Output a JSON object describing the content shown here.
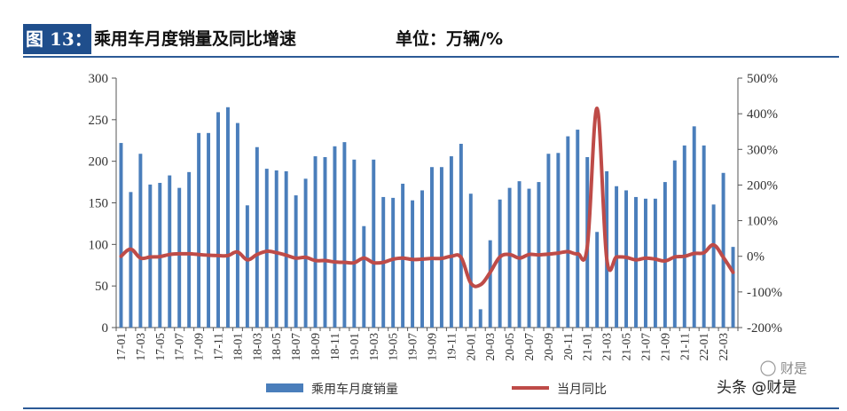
{
  "header": {
    "figure_label": "图 13：",
    "title": "乘用车月度销量及同比增速",
    "unit": "单位：万辆/%"
  },
  "watermark": {
    "top": "财是",
    "bottom": "头条 @财是"
  },
  "colors": {
    "bar": "#4a7ebb",
    "line": "#be4b48",
    "header_bg": "#1f4e8c",
    "rule": "#2c5a96"
  },
  "chart_data": {
    "type": "bar",
    "title": "乘用车月度销量及同比增速",
    "categories": [
      "17-01",
      "17-02",
      "17-03",
      "17-04",
      "17-05",
      "17-06",
      "17-07",
      "17-08",
      "17-09",
      "17-10",
      "17-11",
      "17-12",
      "18-01",
      "18-02",
      "18-03",
      "18-04",
      "18-05",
      "18-06",
      "18-07",
      "18-08",
      "18-09",
      "18-10",
      "18-11",
      "18-12",
      "19-01",
      "19-02",
      "19-03",
      "19-04",
      "19-05",
      "19-06",
      "19-07",
      "19-08",
      "19-09",
      "19-10",
      "19-11",
      "19-12",
      "20-01",
      "20-02",
      "20-03",
      "20-04",
      "20-05",
      "20-06",
      "20-07",
      "20-08",
      "20-09",
      "20-10",
      "20-11",
      "20-12",
      "21-01",
      "21-02",
      "21-03",
      "21-04",
      "21-05",
      "21-06",
      "21-07",
      "21-08",
      "21-09",
      "21-10",
      "21-11",
      "21-12",
      "22-01",
      "22-02",
      "22-03",
      "22-04"
    ],
    "x_tick_labels": [
      "17-01",
      "17-03",
      "17-05",
      "17-07",
      "17-09",
      "17-11",
      "18-01",
      "18-03",
      "18-05",
      "18-07",
      "18-09",
      "18-11",
      "19-01",
      "19-03",
      "19-05",
      "19-07",
      "19-09",
      "19-11",
      "20-01",
      "20-03",
      "20-05",
      "20-07",
      "20-09",
      "20-11",
      "21-01",
      "21-03",
      "21-05",
      "21-07",
      "21-09",
      "21-11",
      "22-01",
      "22-03"
    ],
    "series": [
      {
        "name": "乘用车月度销量",
        "type": "bar",
        "axis": "left",
        "values": [
          222,
          163,
          209,
          172,
          174,
          183,
          168,
          187,
          234,
          234,
          259,
          265,
          246,
          147,
          217,
          191,
          189,
          188,
          159,
          179,
          206,
          205,
          218,
          223,
          202,
          122,
          202,
          157,
          156,
          173,
          153,
          165,
          193,
          193,
          206,
          221,
          161,
          22,
          105,
          154,
          168,
          176,
          167,
          175,
          209,
          210,
          230,
          238,
          205,
          115,
          188,
          170,
          165,
          157,
          155,
          155,
          175,
          201,
          219,
          242,
          219,
          148,
          186,
          97
        ]
      },
      {
        "name": "当月同比",
        "type": "line",
        "axis": "right",
        "values": [
          0,
          20,
          -5,
          -2,
          -1,
          5,
          7,
          7,
          5,
          3,
          2,
          2,
          12,
          -10,
          5,
          14,
          10,
          3,
          -5,
          -3,
          -12,
          -12,
          -16,
          -17,
          -18,
          -5,
          -18,
          -17,
          -8,
          -5,
          -9,
          -8,
          -6,
          -6,
          0,
          -3,
          -75,
          -80,
          -45,
          -2,
          5,
          -5,
          5,
          4,
          6,
          9,
          13,
          7,
          28,
          415,
          -7,
          -2,
          -3,
          -10,
          -5,
          -8,
          -13,
          -2,
          0,
          8,
          10,
          32,
          -3,
          -45
        ]
      }
    ],
    "y_left": {
      "min": 0,
      "max": 300,
      "ticks": [
        0,
        50,
        100,
        150,
        200,
        250,
        300
      ]
    },
    "y_right": {
      "min": -200,
      "max": 500,
      "ticks": [
        "-200%",
        "-100%",
        "0%",
        "100%",
        "200%",
        "300%",
        "400%",
        "500%"
      ]
    },
    "legend": {
      "position": "bottom",
      "items": [
        "乘用车月度销量",
        "当月同比"
      ]
    }
  }
}
